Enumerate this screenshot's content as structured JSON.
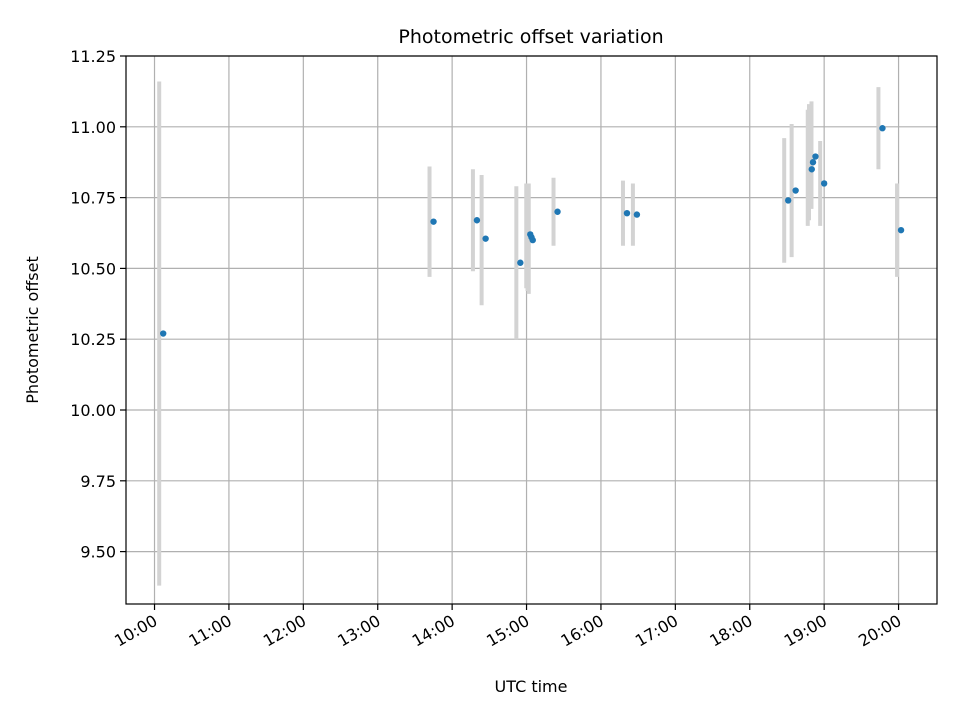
{
  "chart_data": {
    "type": "scatter",
    "title": "Photometric offset variation",
    "xlabel": "UTC time",
    "ylabel": "Photometric offset",
    "x_scale": "time",
    "xlim": [
      "09:37",
      "20:31"
    ],
    "ylim": [
      9.315,
      11.25
    ],
    "x_ticks": [
      "10:00",
      "11:00",
      "12:00",
      "13:00",
      "14:00",
      "15:00",
      "16:00",
      "17:00",
      "18:00",
      "19:00",
      "20:00"
    ],
    "y_ticks": [
      "9.50",
      "9.75",
      "10.00",
      "10.25",
      "10.50",
      "10.75",
      "11.00",
      "11.25"
    ],
    "grid": true,
    "colors": {
      "point": "#1f77b4",
      "errorbar": "#d3d3d3",
      "grid": "#b0b0b0"
    },
    "points": [
      {
        "time": "10:07",
        "y": 10.27,
        "err_low": 9.38,
        "err_high": 11.16
      },
      {
        "time": "13:45",
        "y": 10.665,
        "err_low": 10.47,
        "err_high": 10.86
      },
      {
        "time": "14:20",
        "y": 10.67,
        "err_low": 10.49,
        "err_high": 10.85
      },
      {
        "time": "14:27",
        "y": 10.605,
        "err_low": 10.37,
        "err_high": 10.83
      },
      {
        "time": "14:55",
        "y": 10.52,
        "err_low": 10.25,
        "err_high": 10.79
      },
      {
        "time": "15:03",
        "y": 10.62,
        "err_low": 10.43,
        "err_high": 10.8
      },
      {
        "time": "15:04",
        "y": 10.61,
        "err_low": 10.42,
        "err_high": 10.8
      },
      {
        "time": "15:05",
        "y": 10.6,
        "err_low": 10.41,
        "err_high": 10.8
      },
      {
        "time": "15:25",
        "y": 10.7,
        "err_low": 10.58,
        "err_high": 10.82
      },
      {
        "time": "16:21",
        "y": 10.695,
        "err_low": 10.58,
        "err_high": 10.81
      },
      {
        "time": "16:29",
        "y": 10.69,
        "err_low": 10.58,
        "err_high": 10.8
      },
      {
        "time": "18:31",
        "y": 10.74,
        "err_low": 10.52,
        "err_high": 10.96
      },
      {
        "time": "18:37",
        "y": 10.775,
        "err_low": 10.54,
        "err_high": 11.01
      },
      {
        "time": "18:50",
        "y": 10.85,
        "err_low": 10.65,
        "err_high": 11.06
      },
      {
        "time": "18:51",
        "y": 10.875,
        "err_low": 10.67,
        "err_high": 11.08
      },
      {
        "time": "18:53",
        "y": 10.895,
        "err_low": 10.71,
        "err_high": 11.09
      },
      {
        "time": "19:00",
        "y": 10.8,
        "err_low": 10.65,
        "err_high": 10.95
      },
      {
        "time": "19:47",
        "y": 10.995,
        "err_low": 10.85,
        "err_high": 11.14
      },
      {
        "time": "20:02",
        "y": 10.635,
        "err_low": 10.47,
        "err_high": 10.8
      }
    ]
  }
}
